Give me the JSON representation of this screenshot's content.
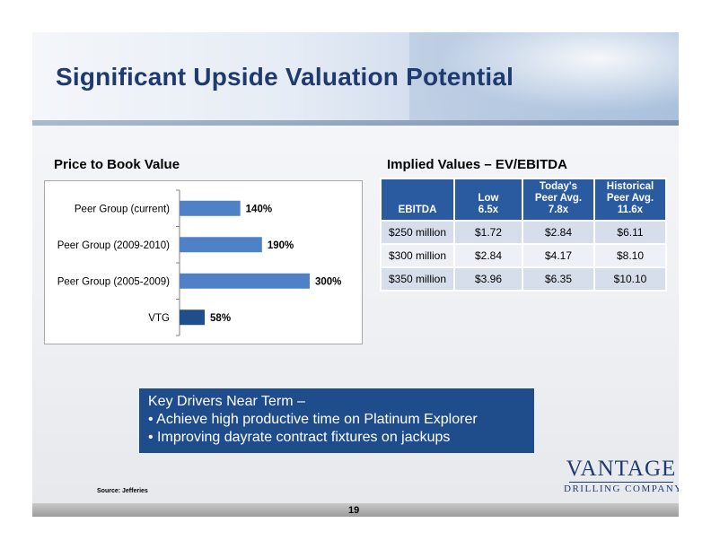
{
  "slide": {
    "title": "Significant Upside Valuation Potential",
    "page_number": "19",
    "source": "Source: Jefferies"
  },
  "pb_chart": {
    "title": "Price to Book Value"
  },
  "chart_data": [
    {
      "type": "bar",
      "orientation": "horizontal",
      "title": "Price to Book Value",
      "categories": [
        "Peer Group (current)",
        "Peer Group (2009-2010)",
        "Peer Group (2005-2009)",
        "VTG"
      ],
      "values": [
        140,
        190,
        300,
        58
      ],
      "data_labels": [
        "140%",
        "190%",
        "300%",
        "58%"
      ],
      "colors": [
        "#4f81c7",
        "#4f81c7",
        "#4f81c7",
        "#1f4e8c"
      ],
      "xlim": [
        0,
        300
      ],
      "grid": false,
      "legend": "none"
    },
    {
      "type": "table",
      "title": "Implied Values – EV/EBITDA",
      "columns": [
        "EBITDA",
        "Low 6.5x",
        "Today's Peer Avg. 7.8x",
        "Historical Peer Avg. 11.6x"
      ],
      "rows": [
        [
          "$250 million",
          "$1.72",
          "$2.84",
          "$6.11"
        ],
        [
          "$300 million",
          "$2.84",
          "$4.17",
          "$8.10"
        ],
        [
          "$350 million",
          "$3.96",
          "$6.35",
          "$10.10"
        ]
      ]
    }
  ],
  "table": {
    "title": "Implied Values – EV/EBITDA",
    "headers": [
      {
        "line1": "",
        "line2": "",
        "line3": "EBITDA"
      },
      {
        "line1": "",
        "line2": "Low",
        "line3": "6.5x"
      },
      {
        "line1": "Today's",
        "line2": "Peer Avg.",
        "line3": "7.8x"
      },
      {
        "line1": "Historical",
        "line2": "Peer Avg.",
        "line3": "11.6x"
      }
    ],
    "rows": [
      [
        "$250 million",
        "$1.72",
        "$2.84",
        "$6.11"
      ],
      [
        "$300 million",
        "$2.84",
        "$4.17",
        "$8.10"
      ],
      [
        "$350 million",
        "$3.96",
        "$6.35",
        "$10.10"
      ]
    ]
  },
  "callout": {
    "heading": "Key Drivers Near Term –",
    "bullets": [
      "•  Achieve high productive time on Platinum Explorer",
      "•  Improving dayrate contract fixtures on jackups"
    ]
  },
  "logo": {
    "main": "VANTAGE",
    "sub": "DRILLING COMPANY"
  }
}
